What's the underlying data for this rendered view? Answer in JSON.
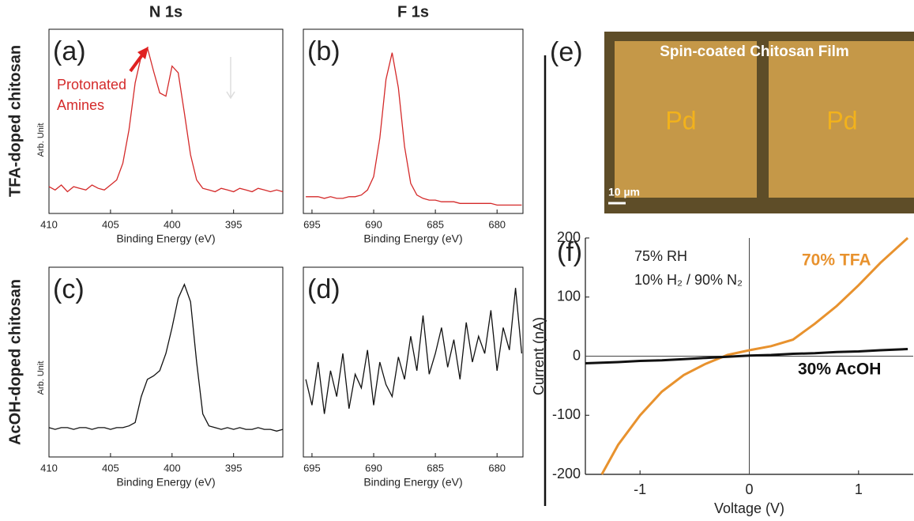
{
  "figure": {
    "columns": [
      "N 1s",
      "F 1s"
    ],
    "rows": [
      "TFA-doped chitosan",
      "AcOH-doped chitosan"
    ]
  },
  "image": {
    "panel": "(e)",
    "title": "Spin-coated Chitosan Film",
    "labels": [
      "Pd",
      "Pd"
    ],
    "scale_bar": "10 µm"
  },
  "chart_data": [
    {
      "type": "line",
      "panel": "(a)",
      "ylabel": "Arb. Unit",
      "xlabel": "Binding Energy (eV)",
      "color": "#d42a2a",
      "annotations": [
        "Protonated",
        "Amines"
      ],
      "xlim": [
        410,
        391
      ],
      "xticks": [
        410,
        405,
        400,
        395
      ],
      "ylim": [
        0,
        1.1
      ],
      "x": [
        410,
        409.5,
        409,
        408.5,
        408,
        407.5,
        407,
        406.5,
        406,
        405.5,
        405,
        404.5,
        404,
        403.5,
        403,
        402.5,
        402,
        401.5,
        401,
        400.5,
        400,
        399.5,
        399,
        398.5,
        398,
        397.5,
        397,
        396.5,
        396,
        395.5,
        395,
        394.5,
        394,
        393.5,
        393,
        392.5,
        392,
        391.5,
        391
      ],
      "values": [
        0.16,
        0.14,
        0.17,
        0.13,
        0.16,
        0.15,
        0.14,
        0.17,
        0.15,
        0.14,
        0.17,
        0.2,
        0.3,
        0.5,
        0.78,
        0.94,
        0.99,
        0.85,
        0.72,
        0.7,
        0.88,
        0.84,
        0.6,
        0.35,
        0.2,
        0.15,
        0.14,
        0.13,
        0.15,
        0.14,
        0.13,
        0.15,
        0.14,
        0.13,
        0.15,
        0.14,
        0.13,
        0.14,
        0.13
      ]
    },
    {
      "type": "line",
      "panel": "(b)",
      "xlabel": "Binding Energy (eV)",
      "color": "#d42a2a",
      "xlim": [
        695.7,
        677.9
      ],
      "xticks": [
        695,
        690,
        685,
        680
      ],
      "ylim": [
        0,
        1.1
      ],
      "x": [
        695.5,
        695,
        694.5,
        694,
        693.5,
        693,
        692.5,
        692,
        691.5,
        691,
        690.5,
        690,
        689.5,
        689,
        688.5,
        688,
        687.5,
        687,
        686.5,
        686,
        685.5,
        685,
        684.5,
        684,
        683.5,
        683,
        682.5,
        682,
        681.5,
        681,
        680.5,
        680,
        679.5,
        679,
        678.5,
        678
      ],
      "values": [
        0.1,
        0.1,
        0.1,
        0.09,
        0.1,
        0.09,
        0.09,
        0.1,
        0.1,
        0.11,
        0.14,
        0.22,
        0.45,
        0.8,
        0.96,
        0.75,
        0.4,
        0.18,
        0.11,
        0.09,
        0.08,
        0.08,
        0.07,
        0.07,
        0.07,
        0.06,
        0.06,
        0.06,
        0.06,
        0.06,
        0.06,
        0.05,
        0.05,
        0.05,
        0.05,
        0.05
      ]
    },
    {
      "type": "line",
      "panel": "(c)",
      "ylabel": "Arb. Unit",
      "xlabel": "Binding Energy (eV)",
      "color": "#111111",
      "xlim": [
        410,
        391
      ],
      "xticks": [
        410,
        405,
        400,
        395
      ],
      "ylim": [
        0,
        1.1
      ],
      "x": [
        410,
        409.5,
        409,
        408.5,
        408,
        407.5,
        407,
        406.5,
        406,
        405.5,
        405,
        404.5,
        404,
        403.5,
        403,
        402.5,
        402,
        401.5,
        401,
        400.5,
        400,
        399.5,
        399,
        398.5,
        398,
        397.5,
        397,
        396.5,
        396,
        395.5,
        395,
        394.5,
        394,
        393.5,
        393,
        392.5,
        392,
        391.5,
        391
      ],
      "values": [
        0.17,
        0.16,
        0.17,
        0.17,
        0.16,
        0.17,
        0.17,
        0.16,
        0.17,
        0.17,
        0.16,
        0.17,
        0.17,
        0.18,
        0.2,
        0.35,
        0.45,
        0.47,
        0.5,
        0.6,
        0.75,
        0.92,
        1.0,
        0.9,
        0.55,
        0.25,
        0.18,
        0.17,
        0.16,
        0.17,
        0.16,
        0.17,
        0.16,
        0.16,
        0.17,
        0.16,
        0.16,
        0.15,
        0.16
      ]
    },
    {
      "type": "line",
      "panel": "(d)",
      "xlabel": "Binding Energy (eV)",
      "color": "#111111",
      "xlim": [
        695.7,
        677.9
      ],
      "xticks": [
        695,
        690,
        685,
        680
      ],
      "ylim": [
        0,
        1.1
      ],
      "x": [
        695.5,
        695,
        694.5,
        694,
        693.5,
        693,
        692.5,
        692,
        691.5,
        691,
        690.5,
        690,
        689.5,
        689,
        688.5,
        688,
        687.5,
        687,
        686.5,
        686,
        685.5,
        685,
        684.5,
        684,
        683.5,
        683,
        682.5,
        682,
        681.5,
        681,
        680.5,
        680,
        679.5,
        679,
        678.5,
        678
      ],
      "values": [
        0.45,
        0.3,
        0.55,
        0.25,
        0.5,
        0.35,
        0.6,
        0.28,
        0.48,
        0.4,
        0.62,
        0.3,
        0.55,
        0.42,
        0.35,
        0.58,
        0.45,
        0.7,
        0.5,
        0.82,
        0.48,
        0.6,
        0.75,
        0.52,
        0.68,
        0.45,
        0.78,
        0.55,
        0.7,
        0.6,
        0.85,
        0.5,
        0.75,
        0.62,
        0.98,
        0.6
      ]
    },
    {
      "type": "iv",
      "panel": "(f)",
      "xlabel": "Voltage (V)",
      "ylabel": "Current (nA)",
      "annotations": [
        "75% RH",
        "10% H₂ / 90% N₂"
      ],
      "xlim": [
        -1.5,
        1.5
      ],
      "xticks": [
        -1,
        0,
        1
      ],
      "ylim": [
        -200,
        200
      ],
      "yticks": [
        -200,
        -100,
        0,
        100,
        200
      ],
      "x": [
        -1.5,
        -1.35,
        -1.2,
        -1.0,
        -0.8,
        -0.6,
        -0.4,
        -0.2,
        0,
        0.2,
        0.4,
        0.6,
        0.8,
        1.0,
        1.2,
        1.45
      ],
      "series": [
        {
          "name": "70% TFA",
          "color": "#e8922e",
          "values": [
            null,
            -200,
            -150,
            -100,
            -60,
            -32,
            -13,
            2,
            10,
            17,
            28,
            55,
            85,
            120,
            158,
            200
          ]
        },
        {
          "name": "30% AcOH",
          "color": "#111111",
          "values": [
            -12,
            -11,
            -10,
            -8,
            -7,
            -5,
            -3,
            -1,
            1,
            2,
            4,
            5,
            7,
            8,
            10,
            12
          ]
        }
      ]
    }
  ]
}
